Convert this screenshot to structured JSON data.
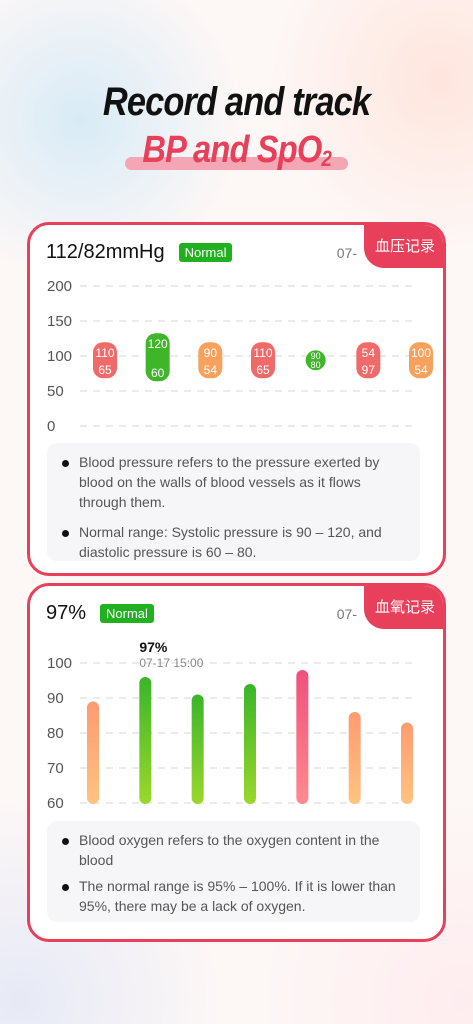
{
  "hero": {
    "line1": "Record and track",
    "line2": "BP and SpO",
    "line2_sub": "2"
  },
  "bp_card": {
    "tag": "血压记录",
    "value": "112/82mmHg",
    "status": "Normal",
    "date": "07-",
    "info": [
      "Blood pressure refers to the pressure exerted by blood on the walls of blood vessels as it flows through them.",
      "Normal range: Systolic pressure is 90 – 120, and diastolic pressure is 60 – 80."
    ]
  },
  "o2_card": {
    "tag": "血氧记录",
    "value": "97%",
    "status": "Normal",
    "date": "07-",
    "tooltip_value": "97%",
    "tooltip_time": "07-17 15:00",
    "info": [
      "Blood oxygen refers to the oxygen content in the blood",
      "The normal range is 95% – 100%. If it is lower than 95%, there may be a lack of oxygen."
    ]
  },
  "chart_data": [
    {
      "type": "bar",
      "chart": "blood-pressure",
      "ylim": [
        0,
        200
      ],
      "yticks": [
        "200",
        "150",
        "100",
        "50",
        "0"
      ],
      "grid": true,
      "series": [
        {
          "name": "",
          "values": [
            110,
            120,
            90,
            110,
            90,
            54,
            100
          ]
        },
        {
          "name": "",
          "values": [
            65,
            60,
            54,
            65,
            80,
            97,
            54
          ]
        }
      ],
      "colors": [
        "#f06a6a",
        "#3fb52a",
        "#f7a15c",
        "#f06a6a",
        "#3fb52a",
        "#f06a6a",
        "#f7a15c"
      ]
    },
    {
      "type": "bar",
      "chart": "blood-oxygen",
      "ylim": [
        60,
        100
      ],
      "yticks": [
        "100",
        "90",
        "80",
        "70",
        "60"
      ],
      "grid": true,
      "values": [
        89,
        96,
        91,
        94,
        98,
        86,
        83
      ],
      "colors": [
        "orange",
        "green",
        "green",
        "green",
        "red",
        "orange",
        "orange"
      ]
    }
  ]
}
